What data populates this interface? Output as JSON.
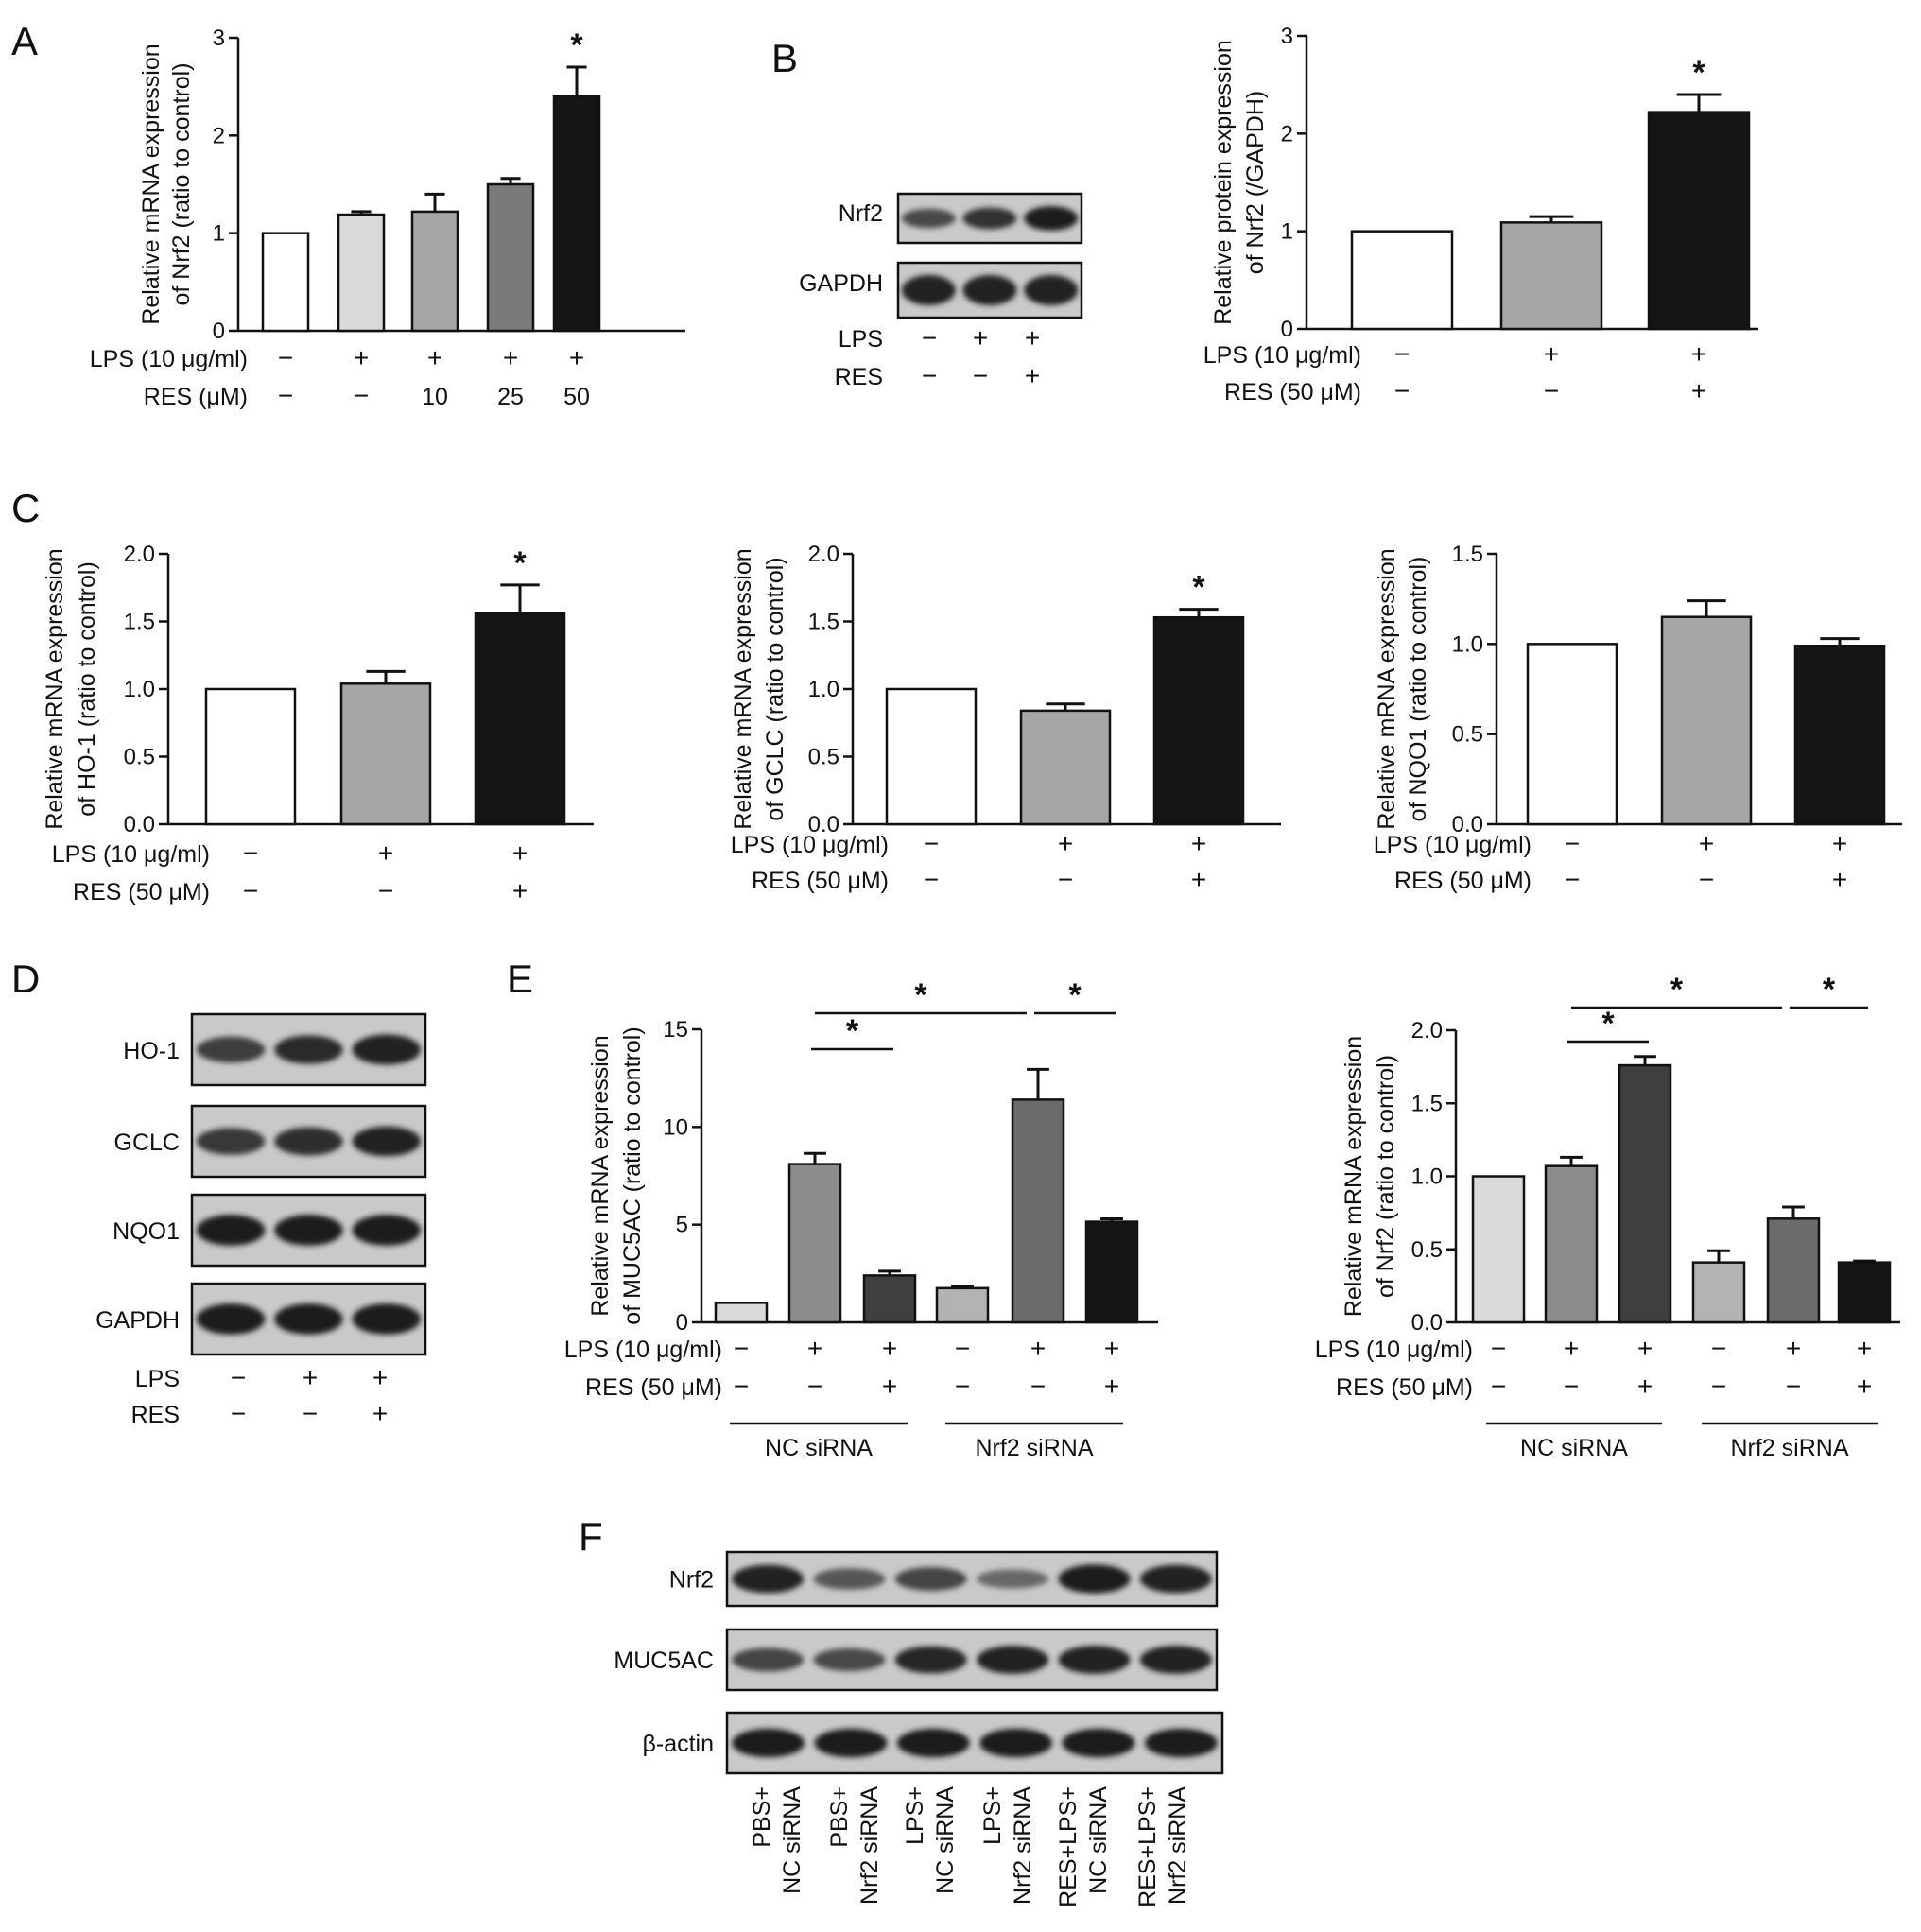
{
  "panel_letters": {
    "A": "A",
    "B": "B",
    "C": "C",
    "D": "D",
    "E": "E",
    "F": "F"
  },
  "signs": {
    "plus": "+",
    "minus": "−",
    "star": "*"
  },
  "chart_data": [
    {
      "id": "A",
      "type": "bar",
      "ylabel": [
        "Relative mRNA expression",
        "of Nrf2 (ratio to control)"
      ],
      "ylim": [
        0,
        3
      ],
      "yticks": [
        "0",
        "1",
        "2",
        "3"
      ],
      "values": [
        1.0,
        1.19,
        1.22,
        1.5,
        2.4
      ],
      "errors": [
        0,
        0.03,
        0.18,
        0.06,
        0.3
      ],
      "colors": [
        "#ffffff",
        "#d9d9d9",
        "#a6a6a6",
        "#7a7a7a",
        "#151515"
      ],
      "stars": [
        4
      ],
      "rows": [
        {
          "label": "LPS (10 μg/ml)",
          "cells": [
            "−",
            "+",
            "+",
            "+",
            "+"
          ]
        },
        {
          "label": "RES (μM)",
          "cells": [
            "−",
            "−",
            "10",
            "25",
            "50"
          ]
        }
      ]
    },
    {
      "id": "B",
      "type": "bar",
      "ylabel": [
        "Relative protein expression",
        "of Nrf2 (/GAPDH)"
      ],
      "ylim": [
        0,
        3
      ],
      "yticks": [
        "0",
        "1",
        "2",
        "3"
      ],
      "values": [
        1.0,
        1.09,
        2.22
      ],
      "errors": [
        0,
        0.06,
        0.18
      ],
      "colors": [
        "#ffffff",
        "#a6a6a6",
        "#151515"
      ],
      "stars": [
        2
      ],
      "rows": [
        {
          "label": "LPS (10 μg/ml)",
          "cells": [
            "−",
            "+",
            "+"
          ]
        },
        {
          "label": "RES (50 μM)",
          "cells": [
            "−",
            "−",
            "+"
          ]
        }
      ]
    },
    {
      "id": "C1",
      "type": "bar",
      "ylabel": [
        "Relative mRNA expression",
        "of HO-1 (ratio to control)"
      ],
      "ylim": [
        0,
        2
      ],
      "yticks": [
        "0.0",
        "0.5",
        "1.0",
        "1.5",
        "2.0"
      ],
      "values": [
        1.0,
        1.04,
        1.56
      ],
      "errors": [
        0,
        0.09,
        0.21
      ],
      "colors": [
        "#ffffff",
        "#a6a6a6",
        "#151515"
      ],
      "stars": [
        2
      ],
      "rows": [
        {
          "label": "LPS (10 μg/ml)",
          "cells": [
            "−",
            "+",
            "+"
          ]
        },
        {
          "label": "RES (50 μM)",
          "cells": [
            "−",
            "−",
            "+"
          ]
        }
      ]
    },
    {
      "id": "C2",
      "type": "bar",
      "ylabel": [
        "Relative mRNA expression",
        "of GCLC (ratio to control)"
      ],
      "ylim": [
        0,
        2
      ],
      "yticks": [
        "0.0",
        "0.5",
        "1.0",
        "1.5",
        "2.0"
      ],
      "values": [
        1.0,
        0.84,
        1.53
      ],
      "errors": [
        0,
        0.05,
        0.06
      ],
      "colors": [
        "#ffffff",
        "#a6a6a6",
        "#151515"
      ],
      "stars": [
        2
      ],
      "rows": [
        {
          "label": "LPS (10 μg/ml)",
          "cells": [
            "−",
            "+",
            "+"
          ]
        },
        {
          "label": "RES (50 μM)",
          "cells": [
            "−",
            "−",
            "+"
          ]
        }
      ]
    },
    {
      "id": "C3",
      "type": "bar",
      "ylabel": [
        "Relative mRNA expression",
        "of NQO1 (ratio to control)"
      ],
      "ylim": [
        0,
        1.5
      ],
      "yticks": [
        "0.0",
        "0.5",
        "1.0",
        "1.5"
      ],
      "values": [
        1.0,
        1.15,
        0.99
      ],
      "errors": [
        0,
        0.09,
        0.04
      ],
      "colors": [
        "#ffffff",
        "#a6a6a6",
        "#151515"
      ],
      "stars": [],
      "rows": [
        {
          "label": "LPS (10 μg/ml)",
          "cells": [
            "−",
            "+",
            "+"
          ]
        },
        {
          "label": "RES (50 μM)",
          "cells": [
            "−",
            "−",
            "+"
          ]
        }
      ]
    },
    {
      "id": "E1",
      "type": "bar",
      "ylabel": [
        "Relative mRNA expression",
        "of MUC5AC (ratio to control)"
      ],
      "ylim": [
        0,
        15
      ],
      "yticks": [
        "0",
        "5",
        "10",
        "15"
      ],
      "values": [
        1.0,
        8.1,
        2.4,
        1.75,
        11.4,
        5.15
      ],
      "errors": [
        0,
        0.55,
        0.22,
        0.1,
        1.55,
        0.15
      ],
      "colors": [
        "#d9d9d9",
        "#8c8c8c",
        "#3f3f3f",
        "#b3b3b3",
        "#6b6b6b",
        "#151515"
      ],
      "brackets": [
        [
          1,
          2
        ],
        [
          1,
          4
        ],
        [
          4,
          5
        ]
      ],
      "rows": [
        {
          "label": "LPS (10 μg/ml)",
          "cells": [
            "−",
            "+",
            "+",
            "−",
            "+",
            "+"
          ]
        },
        {
          "label": "RES (50 μM)",
          "cells": [
            "−",
            "−",
            "+",
            "−",
            "−",
            "+"
          ]
        }
      ],
      "groups": [
        "NC siRNA",
        "Nrf2 siRNA"
      ]
    },
    {
      "id": "E2",
      "type": "bar",
      "ylabel": [
        "Relative mRNA expression",
        "of Nrf2 (ratio to control)"
      ],
      "ylim": [
        0,
        2
      ],
      "yticks": [
        "0.0",
        "0.5",
        "1.0",
        "1.5",
        "2.0"
      ],
      "values": [
        1.0,
        1.07,
        1.76,
        0.41,
        0.71,
        0.41
      ],
      "errors": [
        0,
        0.06,
        0.06,
        0.08,
        0.08,
        0.01
      ],
      "colors": [
        "#d9d9d9",
        "#8c8c8c",
        "#3f3f3f",
        "#b3b3b3",
        "#6b6b6b",
        "#151515"
      ],
      "brackets": [
        [
          1,
          2
        ],
        [
          1,
          4
        ],
        [
          4,
          5
        ]
      ],
      "rows": [
        {
          "label": "LPS (10 μg/ml)",
          "cells": [
            "−",
            "+",
            "+",
            "−",
            "+",
            "+"
          ]
        },
        {
          "label": "RES (50 μM)",
          "cells": [
            "−",
            "−",
            "+",
            "−",
            "−",
            "+"
          ]
        }
      ],
      "groups": [
        "NC siRNA",
        "Nrf2 siRNA"
      ]
    }
  ],
  "blots": {
    "B": {
      "proteins": [
        "Nrf2",
        "GAPDH"
      ],
      "rows": [
        {
          "label": "LPS",
          "cells": [
            "−",
            "+",
            "+"
          ]
        },
        {
          "label": "RES",
          "cells": [
            "−",
            "−",
            "+"
          ]
        }
      ]
    },
    "D": {
      "proteins": [
        "HO-1",
        "GCLC",
        "NQO1",
        "GAPDH"
      ],
      "rows": [
        {
          "label": "LPS",
          "cells": [
            "−",
            "+",
            "+"
          ]
        },
        {
          "label": "RES",
          "cells": [
            "−",
            "−",
            "+"
          ]
        }
      ]
    },
    "F": {
      "proteins": [
        "Nrf2",
        "MUC5AC",
        "β-actin"
      ],
      "lanes": [
        [
          "PBS+",
          "NC siRNA"
        ],
        [
          "PBS+",
          "Nrf2 siRNA"
        ],
        [
          "LPS+",
          "NC siRNA"
        ],
        [
          "LPS+",
          "Nrf2 siRNA"
        ],
        [
          "RES+LPS+",
          "NC siRNA"
        ],
        [
          "RES+LPS+",
          "Nrf2 siRNA"
        ]
      ]
    }
  }
}
